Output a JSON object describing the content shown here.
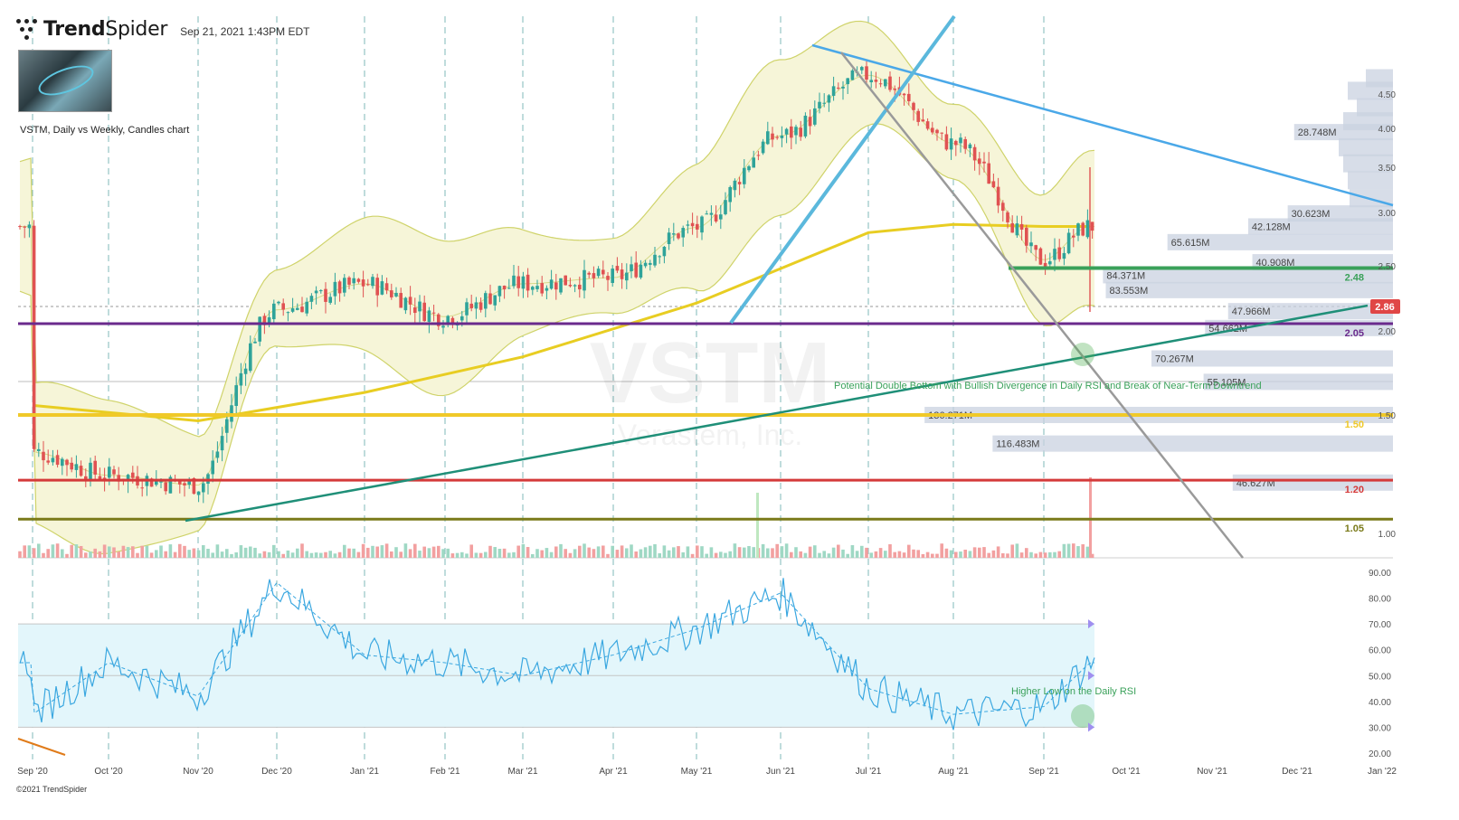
{
  "header": {
    "brand_bold": "Trend",
    "brand_light": "Spider",
    "timestamp": "Sep 21, 2021 1:43PM EDT",
    "subtitle": "VSTM, Daily vs Weekly, Candles chart",
    "watermark_ticker": "VSTM",
    "watermark_name": "Verastem, Inc."
  },
  "footer": {
    "copyright": "©2021 TrendSpider"
  },
  "colors": {
    "up": "#2fa39a",
    "down": "#e05252",
    "bb_fill": "#f6f5d8",
    "bb_line": "#cfd36a",
    "sma": "#e8cd22",
    "trend_blue": "#4aa8e8",
    "trend_teal": "#1f8f78",
    "rsi": "#3aa7e0",
    "rsi_band": "#e3f6fb",
    "purple": "#6a2a8c",
    "gold": "#f0c929",
    "red": "#d43a3a",
    "olive": "#7a7a1a",
    "green_support": "#3aa15a",
    "price_tag": "#e04646"
  },
  "chart_data": [
    {
      "type": "candlestick",
      "title": "VSTM, Daily vs Weekly, Candles chart",
      "x_ticks": [
        "Sep '20",
        "Oct '20",
        "Nov '20",
        "Dec '20",
        "Jan '21",
        "Feb '21",
        "Mar '21",
        "Apr '21",
        "May '21",
        "Jun '21",
        "Jul '21",
        "Aug '21",
        "Sep '21",
        "Oct '21",
        "Nov '21",
        "Dec '21",
        "Jan '22"
      ],
      "y_scale": "log",
      "y_ticks": [
        "1.00",
        "1.50",
        "2.00",
        "2.50",
        "3.00",
        "3.50",
        "4.00",
        "4.50"
      ],
      "ylim": [
        0.95,
        5.2
      ],
      "last_price": "2.86",
      "price_path": {
        "months": [
          "Sep '20",
          "Oct '20",
          "Nov '20",
          "Dec '20",
          "Jan '21",
          "Feb '21",
          "Mar '21",
          "Apr '21",
          "May '21",
          "Jun '21",
          "Jul '21",
          "Aug '21",
          "Sep '21",
          "Sep 21 '21"
        ],
        "close": [
          1.32,
          1.22,
          1.18,
          2.15,
          2.35,
          2.1,
          2.35,
          2.4,
          2.85,
          3.9,
          4.8,
          3.8,
          2.55,
          2.86
        ]
      },
      "bollinger": {
        "upper_peak": 4.95,
        "lower_trough": 1.05
      },
      "sma_200_path": {
        "months": [
          "Sep '20",
          "Nov '20",
          "Jan '21",
          "Mar '21",
          "May '21",
          "Jul '21",
          "Aug '21",
          "Sep '21",
          "Sep 21 '21"
        ],
        "values": [
          1.55,
          1.47,
          1.62,
          1.83,
          2.2,
          2.8,
          2.88,
          2.86,
          2.86
        ]
      },
      "horizontal_levels": [
        {
          "value": 2.48,
          "label": "2.48",
          "color": "green"
        },
        {
          "value": 2.05,
          "label": "2.05",
          "color": "purple"
        },
        {
          "value": 1.5,
          "label": "1.50",
          "color": "gold"
        },
        {
          "value": 1.2,
          "label": "1.20",
          "color": "red"
        },
        {
          "value": 1.05,
          "label": "1.05",
          "color": "olive"
        }
      ],
      "volume_profile": [
        {
          "label": "28.748M",
          "price": 3.95
        },
        {
          "label": "30.623M",
          "price": 2.99
        },
        {
          "label": "42.128M",
          "price": 2.86
        },
        {
          "label": "65.615M",
          "price": 2.71
        },
        {
          "label": "40.908M",
          "price": 2.53
        },
        {
          "label": "84.371M",
          "price": 2.42
        },
        {
          "label": "83.553M",
          "price": 2.3
        },
        {
          "label": "47.966M",
          "price": 2.14
        },
        {
          "label": "54.662M",
          "price": 2.02
        },
        {
          "label": "70.267M",
          "price": 1.82
        },
        {
          "label": "55.105M",
          "price": 1.68
        },
        {
          "label": "136.271M",
          "price": 1.5
        },
        {
          "label": "116.483M",
          "price": 1.36
        },
        {
          "label": "46.627M",
          "price": 1.19
        }
      ],
      "annotations": [
        "Potential Double Bottom with Bullish Divergence in Daily RSI and Break of Near-Term Downtrend"
      ]
    },
    {
      "type": "line",
      "title": "Daily RSI",
      "y_ticks": [
        "20.00",
        "30.00",
        "40.00",
        "50.00",
        "60.00",
        "70.00",
        "80.00",
        "90.00"
      ],
      "ylim": [
        20,
        90
      ],
      "band": [
        30,
        70
      ],
      "rsi_path": {
        "months": [
          "Sep '20",
          "Oct '20",
          "Nov '20",
          "Dec '20",
          "Jan '21",
          "Feb '21",
          "Mar '21",
          "Apr '21",
          "May '21",
          "Jun '21",
          "Jul '21",
          "Aug '21",
          "Sep '21",
          "Sep 21 '21"
        ],
        "values": [
          35,
          55,
          42,
          86,
          58,
          55,
          50,
          58,
          68,
          82,
          45,
          35,
          38,
          55
        ]
      },
      "annotations": [
        "Higher Low on the Daily RSI"
      ]
    }
  ]
}
